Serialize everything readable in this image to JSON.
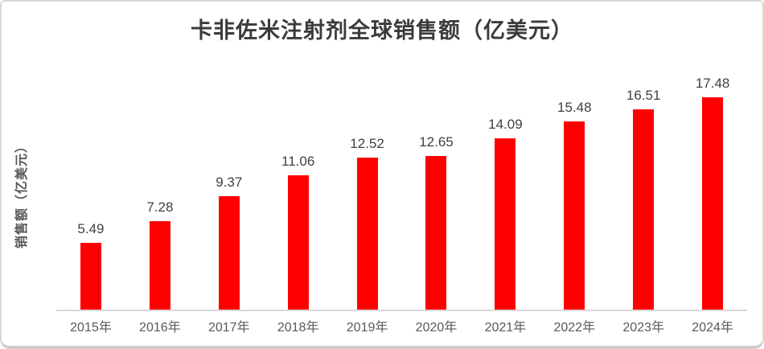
{
  "chart_data": {
    "type": "bar",
    "title": "卡非佐米注射剂全球销售额（亿美元）",
    "ylabel": "销售额（亿美元）",
    "xlabel": "",
    "categories": [
      "2015年",
      "2016年",
      "2017年",
      "2018年",
      "2019年",
      "2020年",
      "2021年",
      "2022年",
      "2023年",
      "2024年"
    ],
    "values": [
      5.49,
      7.28,
      9.37,
      11.06,
      12.52,
      12.65,
      14.09,
      15.48,
      16.51,
      17.48
    ],
    "data_labels": [
      "5.49",
      "7.28",
      "9.37",
      "11.06",
      "12.52",
      "12.65",
      "14.09",
      "15.48",
      "16.51",
      "17.48"
    ],
    "ylim": [
      0,
      18
    ],
    "grid": false,
    "legend_position": "none",
    "bar_color": "#ff0000",
    "value_label_color": "#404040",
    "tick_label_color": "#595959",
    "axis_line_color": "#d9d9d9",
    "title_color": "#3b3b3b",
    "background_color": "#ffffff",
    "border_color": "#d9d9d9"
  }
}
